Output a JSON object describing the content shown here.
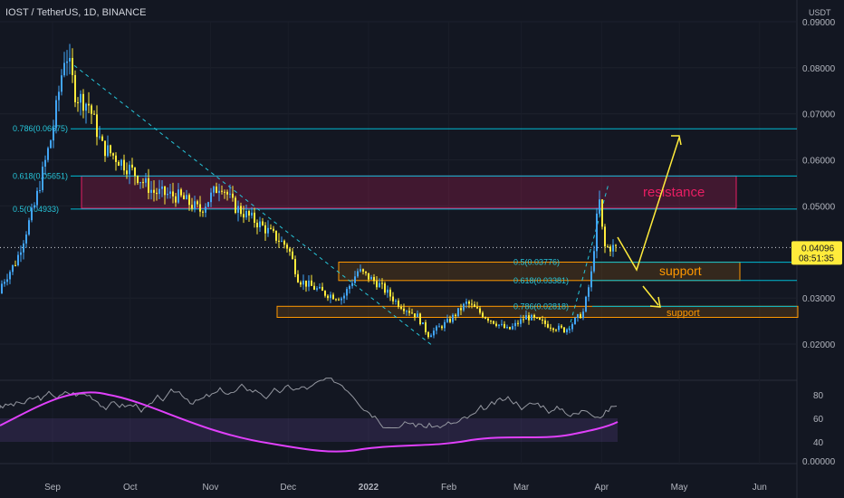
{
  "chart_data": {
    "type": "candlestick",
    "title": "IOST / TetherUS, 1D, BINANCE",
    "currency": "USDT",
    "ylim": [
      0.0,
      0.09
    ],
    "price_ticks": [
      "0.09000",
      "0.08000",
      "0.07000",
      "0.06000",
      "0.05000",
      "0.03000",
      "0.02000"
    ],
    "oscillator_ticks": [
      "80",
      "60",
      "40",
      "0.00000"
    ],
    "x_ticks": [
      "Sep",
      "Oct",
      "Nov",
      "Dec",
      "2022",
      "Feb",
      "Mar",
      "Apr",
      "May",
      "Jun"
    ],
    "last_price": "0.04096",
    "countdown": "08:51:35",
    "fib_levels": [
      {
        "label": "0.786(0.06675)",
        "value": 0.06675
      },
      {
        "label": "0.618(0.05651)",
        "value": 0.05651
      },
      {
        "label": "0.5(0.04933)",
        "value": 0.04933
      },
      {
        "label": "0.5(0.03776)",
        "value": 0.03776
      },
      {
        "label": "0.618(0.03381)",
        "value": 0.03381
      },
      {
        "label": "0.786(0.02818)",
        "value": 0.02818
      }
    ],
    "zones": [
      {
        "label": "resistance",
        "low": 0.0495,
        "high": 0.0565,
        "color": "#e91e63"
      },
      {
        "label": "support",
        "low": 0.0338,
        "high": 0.0378,
        "color": "#ff9800"
      },
      {
        "label": "support",
        "low": 0.0258,
        "high": 0.0282,
        "color": "#ff9800"
      }
    ],
    "close_path": [
      [
        "2021-08-10",
        0.031
      ],
      [
        "2021-08-18",
        0.038
      ],
      [
        "2021-08-25",
        0.05
      ],
      [
        "2021-09-01",
        0.066
      ],
      [
        "2021-09-06",
        0.084
      ],
      [
        "2021-09-10",
        0.074
      ],
      [
        "2021-09-15",
        0.072
      ],
      [
        "2021-09-20",
        0.063
      ],
      [
        "2021-10-01",
        0.058
      ],
      [
        "2021-10-10",
        0.053
      ],
      [
        "2021-10-20",
        0.052
      ],
      [
        "2021-10-28",
        0.049
      ],
      [
        "2021-11-05",
        0.055
      ],
      [
        "2021-11-10",
        0.05
      ],
      [
        "2021-11-20",
        0.046
      ],
      [
        "2021-12-01",
        0.041
      ],
      [
        "2021-12-05",
        0.034
      ],
      [
        "2021-12-15",
        0.031
      ],
      [
        "2021-12-22",
        0.03
      ],
      [
        "2021-12-28",
        0.036
      ],
      [
        "2022-01-05",
        0.033
      ],
      [
        "2022-01-12",
        0.029
      ],
      [
        "2022-01-20",
        0.026
      ],
      [
        "2022-01-24",
        0.022
      ],
      [
        "2022-02-01",
        0.025
      ],
      [
        "2022-02-08",
        0.029
      ],
      [
        "2022-02-15",
        0.026
      ],
      [
        "2022-02-24",
        0.023
      ],
      [
        "2022-03-03",
        0.026
      ],
      [
        "2022-03-12",
        0.024
      ],
      [
        "2022-03-18",
        0.023
      ],
      [
        "2022-03-25",
        0.027
      ],
      [
        "2022-03-28",
        0.035
      ],
      [
        "2022-03-31",
        0.052
      ],
      [
        "2022-04-01",
        0.046
      ],
      [
        "2022-04-02",
        0.041
      ]
    ],
    "rsi_ticks": "values approximated from oscillator pane (0–100 scale)"
  }
}
